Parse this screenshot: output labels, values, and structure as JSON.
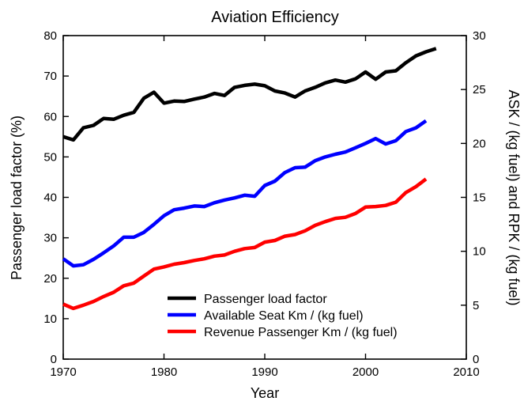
{
  "chart_data": {
    "type": "line",
    "title": "Aviation Efficiency",
    "xlabel": "Year",
    "ylabel_left": "Passenger load factor (%)",
    "ylabel_right": "ASK / (kg fuel) and RPK / (kg fuel)",
    "xlim": [
      1970,
      2010
    ],
    "ylim_left": [
      0,
      80
    ],
    "ylim_right": [
      0,
      30
    ],
    "x_ticks": [
      1970,
      1980,
      1990,
      2000,
      2010
    ],
    "y_left_ticks": [
      0,
      10,
      20,
      30,
      40,
      50,
      60,
      70,
      80
    ],
    "y_right_ticks": [
      0,
      5,
      10,
      15,
      20,
      25,
      30
    ],
    "grid": false,
    "legend_position": "bottom-right",
    "series": [
      {
        "name": "Passenger load factor",
        "color": "#000000",
        "axis": "left",
        "x": [
          1970,
          1971,
          1972,
          1973,
          1974,
          1975,
          1976,
          1977,
          1978,
          1979,
          1980,
          1981,
          1982,
          1983,
          1984,
          1985,
          1986,
          1987,
          1988,
          1989,
          1990,
          1991,
          1992,
          1993,
          1994,
          1995,
          1996,
          1997,
          1998,
          1999,
          2000,
          2001,
          2002,
          2003,
          2004,
          2005,
          2006,
          2007
        ],
        "y": [
          55,
          54.2,
          57.2,
          57.8,
          59.5,
          59.3,
          60.3,
          61,
          64.5,
          66,
          63.3,
          63.8,
          63.7,
          64.3,
          64.8,
          65.7,
          65.2,
          67.2,
          67.7,
          68,
          67.6,
          66.3,
          65.8,
          64.8,
          66.3,
          67.2,
          68.3,
          69,
          68.5,
          69.3,
          71,
          69.2,
          71,
          71.3,
          73.3,
          75,
          76,
          76.8
        ]
      },
      {
        "name": "Available Seat Km / (kg fuel)",
        "color": "#0000ff",
        "axis": "right",
        "x": [
          1970,
          1971,
          1972,
          1973,
          1974,
          1975,
          1976,
          1977,
          1978,
          1979,
          1980,
          1981,
          1982,
          1983,
          1984,
          1985,
          1986,
          1987,
          1988,
          1989,
          1990,
          1991,
          1992,
          1993,
          1994,
          1995,
          1996,
          1997,
          1998,
          1999,
          2000,
          2001,
          2002,
          2003,
          2004,
          2005,
          2006
        ],
        "y": [
          9.3,
          8.65,
          8.75,
          9.25,
          9.85,
          10.5,
          11.3,
          11.3,
          11.75,
          12.5,
          13.3,
          13.85,
          14,
          14.2,
          14.15,
          14.5,
          14.75,
          14.95,
          15.2,
          15.1,
          16.1,
          16.5,
          17.3,
          17.75,
          17.8,
          18.4,
          18.75,
          19,
          19.2,
          19.6,
          20,
          20.45,
          19.95,
          20.25,
          21.1,
          21.45,
          22.1
        ]
      },
      {
        "name": "Revenue Passenger Km / (kg fuel)",
        "color": "#ff0000",
        "axis": "right",
        "x": [
          1970,
          1971,
          1972,
          1973,
          1974,
          1975,
          1976,
          1977,
          1978,
          1979,
          1980,
          1981,
          1982,
          1983,
          1984,
          1985,
          1986,
          1987,
          1988,
          1989,
          1990,
          1991,
          1992,
          1993,
          1994,
          1995,
          1996,
          1997,
          1998,
          1999,
          2000,
          2001,
          2002,
          2003,
          2004,
          2005,
          2006
        ],
        "y": [
          5.1,
          4.7,
          5,
          5.35,
          5.8,
          6.2,
          6.8,
          7.05,
          7.7,
          8.35,
          8.55,
          8.8,
          8.95,
          9.15,
          9.3,
          9.55,
          9.65,
          10,
          10.25,
          10.35,
          10.85,
          11,
          11.4,
          11.55,
          11.9,
          12.4,
          12.75,
          13.05,
          13.15,
          13.5,
          14.1,
          14.15,
          14.25,
          14.55,
          15.45,
          16,
          16.7
        ]
      }
    ]
  }
}
